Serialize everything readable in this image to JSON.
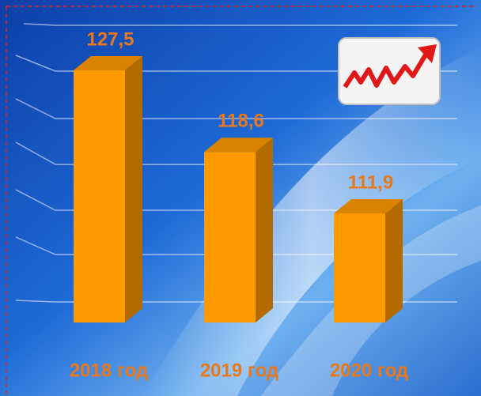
{
  "chart_data": {
    "type": "bar3d",
    "categories": [
      "2018 год",
      "2019 год",
      "2020 год"
    ],
    "values": [
      127.5,
      118.6,
      111.9
    ],
    "value_labels": [
      "127,5",
      "118,6",
      "111,9"
    ],
    "color": "#ff9900",
    "ylim": [
      100,
      130
    ]
  }
}
